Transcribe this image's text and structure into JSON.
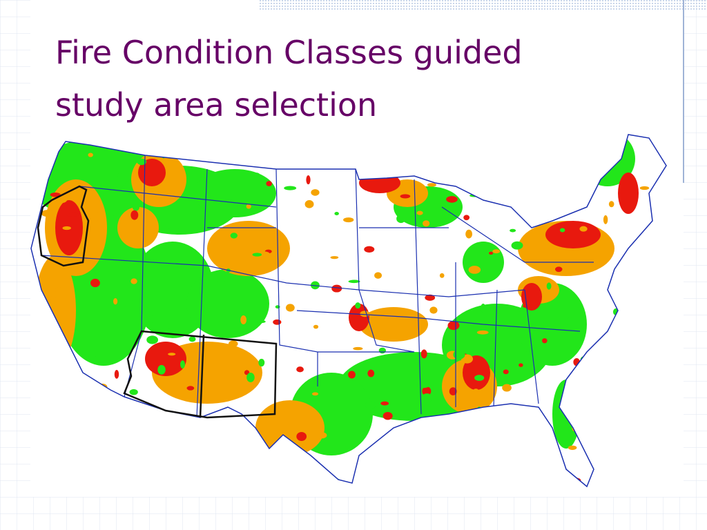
{
  "slide": {
    "title_lines": [
      "Fire Condition Classes guided",
      "study area selection"
    ]
  }
}
